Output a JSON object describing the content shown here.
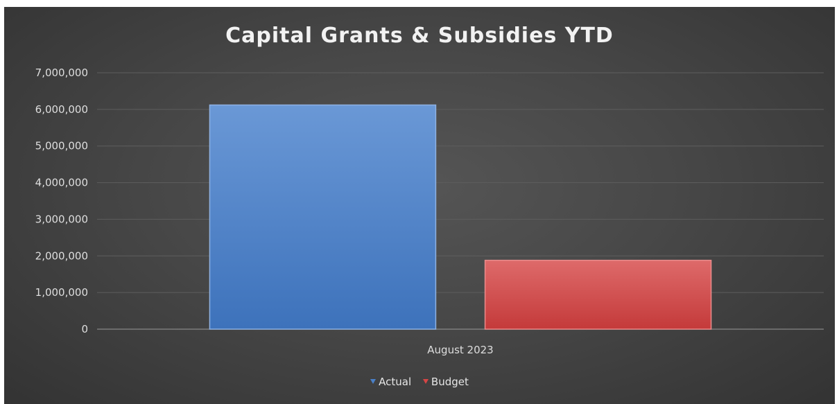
{
  "chart_data": {
    "type": "bar",
    "title": "Capital Grants & Subsidies YTD",
    "categories": [
      "August 2023"
    ],
    "series": [
      {
        "name": "Actual",
        "values": [
          6120000
        ],
        "color": "#4a80c8"
      },
      {
        "name": "Budget",
        "values": [
          1880000
        ],
        "color": "#d64545"
      }
    ],
    "ylim": [
      0,
      7000000
    ],
    "yticks": [
      0,
      1000000,
      2000000,
      3000000,
      4000000,
      5000000,
      6000000,
      7000000
    ],
    "ytick_labels": [
      "0",
      "1,000,000",
      "2,000,000",
      "3,000,000",
      "4,000,000",
      "5,000,000",
      "6,000,000",
      "7,000,000"
    ],
    "grid": true,
    "legend_position": "bottom"
  }
}
